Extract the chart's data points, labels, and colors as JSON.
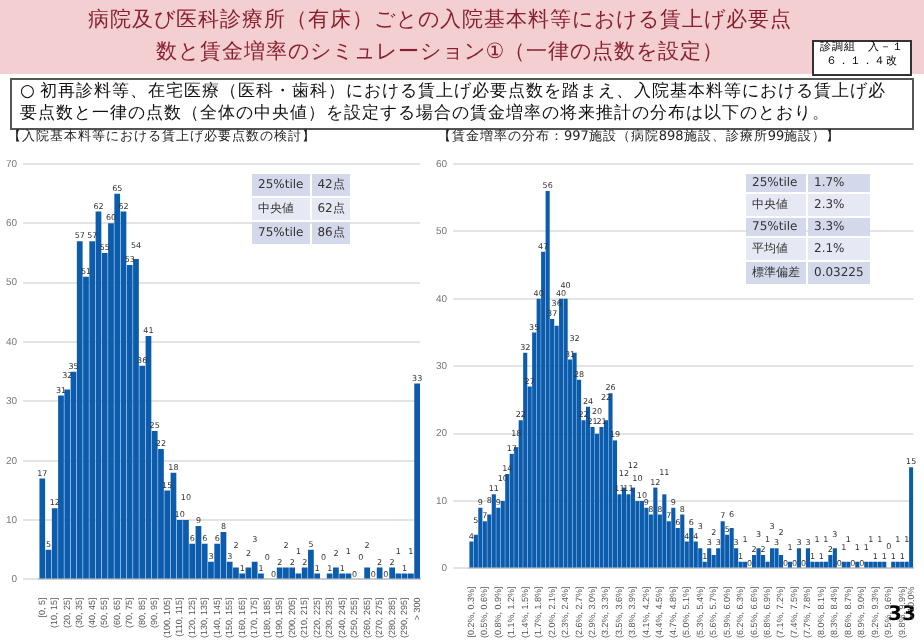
{
  "chart_data": [
    {
      "type": "other",
      "title": "病院及び医科診療所（有床）ごとの入院基本料等における賃上げ必要点数と賃金増率のシミュレーション①（一律の点数を設定）",
      "subtitle": "○ 初再診料等、在宅医療（医科・歯科）における賃上げ必要点数を踏まえ、入院基本料等における賃上げ必要点数と一律の点数（全体の中央値）を設定する場合の賃金増率の将来推計の分布は以下のとおり。",
      "annotations": [
        "診調組　入－１",
        "６．１．４改",
        "33"
      ]
    },
    {
      "type": "bar",
      "title": "【入院基本料等における賃上げ必要点数の検討】",
      "color": "#0b5cad",
      "grid": "y",
      "data_labels": true,
      "ylim": [
        0,
        70
      ],
      "yticks": [
        0,
        10,
        20,
        30,
        40,
        50,
        60,
        70
      ],
      "annotations": [
        "25%tile",
        "42点",
        "中央値",
        "62点",
        "75%tile",
        "86点"
      ],
      "categories": [
        "[0, 5]",
        null,
        "(10, 15]",
        null,
        "(20, 25]",
        null,
        "(30, 35]",
        null,
        "(40, 45]",
        null,
        "(50, 55]",
        null,
        "(60, 65]",
        null,
        "(70, 75]",
        null,
        "(80, 85]",
        null,
        "(90, 95]",
        null,
        "(100, 105]",
        null,
        "(110, 115]",
        null,
        "(120, 125]",
        null,
        "(130, 135]",
        null,
        "(140, 145]",
        null,
        "(150, 155]",
        null,
        "(160, 165]",
        null,
        "(170, 175]",
        null,
        "(180, 185]",
        null,
        "(190, 195]",
        null,
        "(200, 205]",
        null,
        "(210, 215]",
        null,
        "(220, 225]",
        null,
        "(230, 235]",
        null,
        "(240, 245]",
        null,
        "(250, 255]",
        null,
        "(260, 265]",
        null,
        "(270, 275]",
        null,
        "(280, 285]",
        null,
        "(290, 295]",
        null,
        "> 300"
      ],
      "values": [
        17,
        5,
        12,
        31,
        32,
        35,
        57,
        51,
        57,
        62,
        55,
        60,
        65,
        62,
        53,
        54,
        36,
        41,
        25,
        22,
        15,
        18,
        10,
        10,
        6,
        9,
        6,
        3,
        6,
        8,
        3,
        2,
        1,
        2,
        3,
        1,
        0,
        0,
        2,
        2,
        2,
        1,
        2,
        5,
        1,
        0,
        1,
        2,
        1,
        1,
        0,
        0,
        2,
        0,
        2,
        0,
        2,
        1,
        1,
        1,
        33
      ]
    },
    {
      "type": "bar",
      "title": "【賃金増率の分布：997施設（病院898施設、診療所99施設）】",
      "color": "#0b5cad",
      "grid": "y",
      "data_labels": true,
      "ylim": [
        0,
        60
      ],
      "yticks": [
        0,
        10,
        20,
        30,
        40,
        50,
        60
      ],
      "annotations": [
        "25%tile",
        "1.7%",
        "中央値",
        "2.3%",
        "75%tile",
        "3.3%",
        "平均値",
        "2.1%",
        "標準偏差",
        "0.03225"
      ],
      "categories": [
        "[0.2%, 0.3%]",
        null,
        null,
        "(0.5%, 0.6%]",
        null,
        null,
        "(0.8%, 0.9%]",
        null,
        null,
        "(1.1%, 1.2%]",
        null,
        null,
        "(1.4%, 1.5%]",
        null,
        null,
        "(1.7%, 1.8%]",
        null,
        null,
        "(2.0%, 2.1%]",
        null,
        null,
        "(2.3%, 2.4%]",
        null,
        null,
        "(2.6%, 2.7%]",
        null,
        null,
        "(2.9%, 3.0%]",
        null,
        null,
        "(3.2%, 3.3%]",
        null,
        null,
        "(3.5%, 3.6%]",
        null,
        null,
        "(3.8%, 3.9%]",
        null,
        null,
        "(4.1%, 4.2%]",
        null,
        null,
        "(4.4%, 4.5%]",
        null,
        null,
        "(4.7%, 4.8%]",
        null,
        null,
        "(5.0%, 5.1%]",
        null,
        null,
        "(5.3%, 5.4%]",
        null,
        null,
        "(5.6%, 5.7%]",
        null,
        null,
        "(5.9%, 6.0%]",
        null,
        null,
        "(6.2%, 6.3%]",
        null,
        null,
        "(6.5%, 6.6%]",
        null,
        null,
        "(6.8%, 6.9%]",
        null,
        null,
        "(7.1%, 7.2%]",
        null,
        null,
        "(7.4%, 7.5%]",
        null,
        null,
        "(7.7%, 7.8%]",
        null,
        null,
        "(8.0%, 8.1%]",
        null,
        null,
        "(8.3%, 8.4%]",
        null,
        null,
        "(8.6%, 8.7%]",
        null,
        null,
        "(8.9%, 9.0%]",
        null,
        null,
        "(9.2%, 9.3%]",
        null,
        null,
        "(9.5%, 9.6%]",
        null,
        null,
        "(9.8%, 9.9%]",
        null,
        "> 10.0%"
      ],
      "values": [
        4,
        5,
        9,
        7,
        8,
        11,
        9,
        10,
        14,
        17,
        18,
        22,
        32,
        27,
        35,
        40,
        47,
        56,
        37,
        36,
        40,
        40,
        31,
        32,
        28,
        22,
        24,
        21,
        20,
        21,
        22,
        26,
        19,
        11,
        12,
        11,
        12,
        10,
        10,
        9,
        8,
        12,
        8,
        11,
        7,
        9,
        6,
        8,
        4,
        6,
        4,
        3,
        1,
        3,
        2,
        3,
        7,
        5,
        6,
        3,
        1,
        1,
        0,
        2,
        3,
        2,
        1,
        3,
        3,
        2,
        0,
        1,
        0,
        3,
        0,
        3,
        1,
        1,
        1,
        1,
        2,
        3,
        0,
        1,
        1,
        0,
        1,
        0,
        1,
        1,
        1,
        1,
        1,
        0,
        1,
        1,
        1,
        1,
        15
      ]
    }
  ]
}
